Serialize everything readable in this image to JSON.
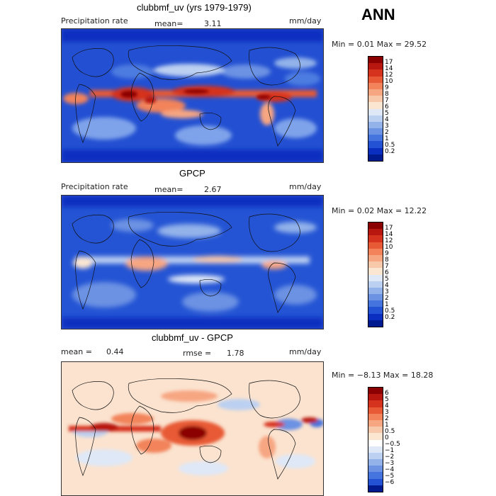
{
  "annotation": "ANN",
  "panels": [
    {
      "title": "clubbmf_uv (yrs 1979-1979)",
      "variable": "Precipitation rate",
      "stat_label": "mean=",
      "stat_value": "3.11",
      "units": "mm/day",
      "minmax": "Min =    0.01  Max =   29.52",
      "colorbar": {
        "labels": [
          "17",
          "14",
          "12",
          "10",
          "9",
          "8",
          "7",
          "6",
          "5",
          "4",
          "3",
          "2",
          "1",
          "0.5",
          "0.2"
        ],
        "colors": [
          "#8b0000",
          "#b8170f",
          "#d6331e",
          "#e85a35",
          "#f2835a",
          "#f7a682",
          "#f8c8aa",
          "#fbe6d2",
          "#dfe8f7",
          "#bcd0f1",
          "#93b2ea",
          "#6c92e3",
          "#4674de",
          "#2353d4",
          "#0a2fc0",
          "#001a8f"
        ]
      }
    },
    {
      "title": "GPCP",
      "variable": "Precipitation rate",
      "stat_label": "mean=",
      "stat_value": "2.67",
      "units": "mm/day",
      "minmax": "Min =    0.02  Max =   12.22",
      "colorbar": {
        "labels": [
          "17",
          "14",
          "12",
          "10",
          "9",
          "8",
          "7",
          "6",
          "5",
          "4",
          "3",
          "2",
          "1",
          "0.5",
          "0.2"
        ],
        "colors": [
          "#8b0000",
          "#b8170f",
          "#d6331e",
          "#e85a35",
          "#f2835a",
          "#f7a682",
          "#f8c8aa",
          "#fbe6d2",
          "#dfe8f7",
          "#bcd0f1",
          "#93b2ea",
          "#6c92e3",
          "#4674de",
          "#2353d4",
          "#0a2fc0",
          "#001a8f"
        ]
      }
    },
    {
      "title": "clubbmf_uv - GPCP",
      "stat_label": "mean =",
      "stat_value": "0.44",
      "rmse_label": "rmse =",
      "rmse_value": "1.78",
      "units": "mm/day",
      "minmax": "Min =  −8.13  Max =   18.28",
      "colorbar": {
        "labels": [
          "6",
          "5",
          "4",
          "3",
          "2",
          "1",
          "0.5",
          "0",
          "−0.5",
          "−1",
          "−2",
          "−3",
          "−4",
          "−5",
          "−6"
        ],
        "colors": [
          "#8b0000",
          "#b8170f",
          "#d6331e",
          "#e85a35",
          "#f2835a",
          "#f7a682",
          "#f8c8aa",
          "#fbe6d2",
          "#ffffff",
          "#dfe8f7",
          "#bcd0f1",
          "#93b2ea",
          "#6c92e3",
          "#4674de",
          "#2353d4",
          "#001a8f"
        ]
      }
    }
  ]
}
